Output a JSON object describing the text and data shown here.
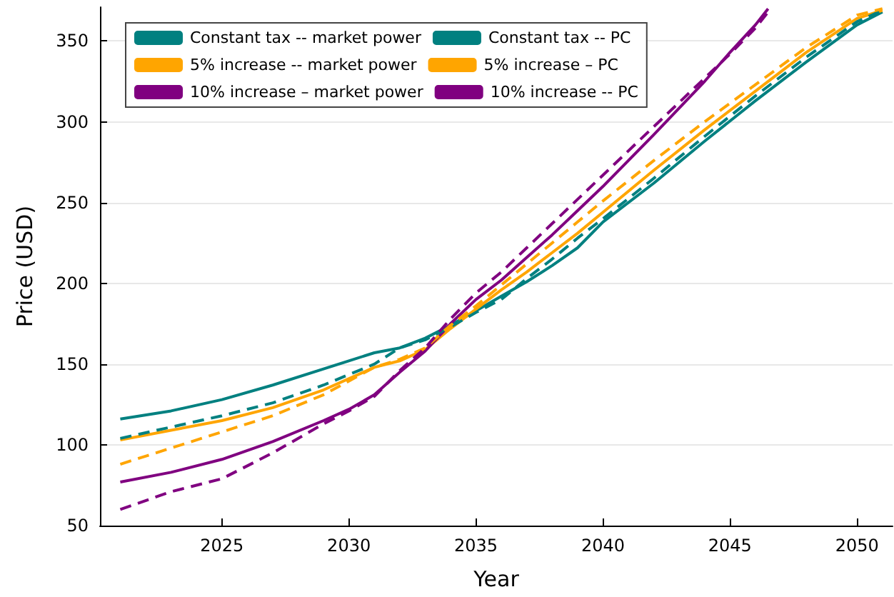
{
  "chart_data": {
    "type": "line",
    "xlabel": "Year",
    "ylabel": "Price (USD)",
    "xlim": [
      2020.2,
      2051.4
    ],
    "xticks": [
      2025,
      2030,
      2035,
      2040,
      2045,
      2050
    ],
    "ylim": [
      50,
      371
    ],
    "yticks": [
      50,
      100,
      150,
      200,
      250,
      300,
      350
    ],
    "grid": "y",
    "legend": "top left",
    "marker": "none",
    "x": [
      2021,
      2023,
      2025,
      2027,
      2029,
      2031,
      2032,
      2033,
      2034,
      2035,
      2036,
      2037,
      2038,
      2039,
      2040,
      2042,
      2044,
      2046,
      2048,
      2050,
      2051
    ],
    "series": [
      {
        "name": "Constant tax -- market power",
        "color": "#008080",
        "line_style": "solid",
        "values": [
          116,
          121,
          128,
          137,
          147,
          157,
          160,
          166,
          174,
          183,
          192,
          201,
          211,
          222,
          238,
          262,
          288,
          313,
          337,
          360,
          368
        ]
      },
      {
        "name": "5% increase -- market power",
        "color": "#ffa500",
        "line_style": "solid",
        "values": [
          103,
          109,
          115,
          123,
          134,
          148,
          152,
          159,
          172,
          184,
          196,
          207,
          219,
          231,
          244,
          270,
          295,
          319,
          343,
          364,
          369
        ]
      },
      {
        "name": "10% increase – market power",
        "color": "#800080",
        "line_style": "solid",
        "x": [
          2021,
          2023,
          2025,
          2027,
          2029,
          2030,
          2031,
          2032,
          2033,
          2034,
          2035,
          2036,
          2037,
          2038,
          2039,
          2040,
          2042,
          2044,
          2045,
          2046,
          2046.5
        ],
        "values": [
          77,
          83,
          91,
          102,
          115,
          122,
          131,
          145,
          158,
          175,
          190,
          202,
          216,
          230,
          245,
          260,
          292,
          325,
          343,
          360,
          370
        ]
      },
      {
        "name": "Constant tax -- PC",
        "color": "#008080",
        "line_style": "dashed",
        "values": [
          104,
          111,
          118,
          126,
          137,
          150,
          160,
          165,
          173,
          182,
          190,
          203,
          215,
          228,
          240,
          265,
          291,
          316,
          340,
          362,
          369
        ]
      },
      {
        "name": "5% increase – PC",
        "color": "#ffa500",
        "line_style": "dashed",
        "values": [
          88,
          98,
          108,
          118,
          131,
          148,
          153,
          160,
          174,
          186,
          199,
          212,
          225,
          238,
          251,
          276,
          300,
          323,
          346,
          366,
          370
        ]
      },
      {
        "name": "10% increase -- PC",
        "color": "#800080",
        "line_style": "dashed",
        "x": [
          2021,
          2023,
          2025,
          2027,
          2029,
          2030,
          2031,
          2032,
          2033,
          2034,
          2035,
          2036,
          2037,
          2038,
          2039,
          2040,
          2042,
          2044,
          2045,
          2046,
          2046.5
        ],
        "values": [
          60,
          71,
          79,
          95,
          113,
          121,
          130,
          146,
          160,
          178,
          194,
          207,
          222,
          237,
          252,
          267,
          297,
          327,
          342,
          358,
          368
        ]
      }
    ]
  }
}
